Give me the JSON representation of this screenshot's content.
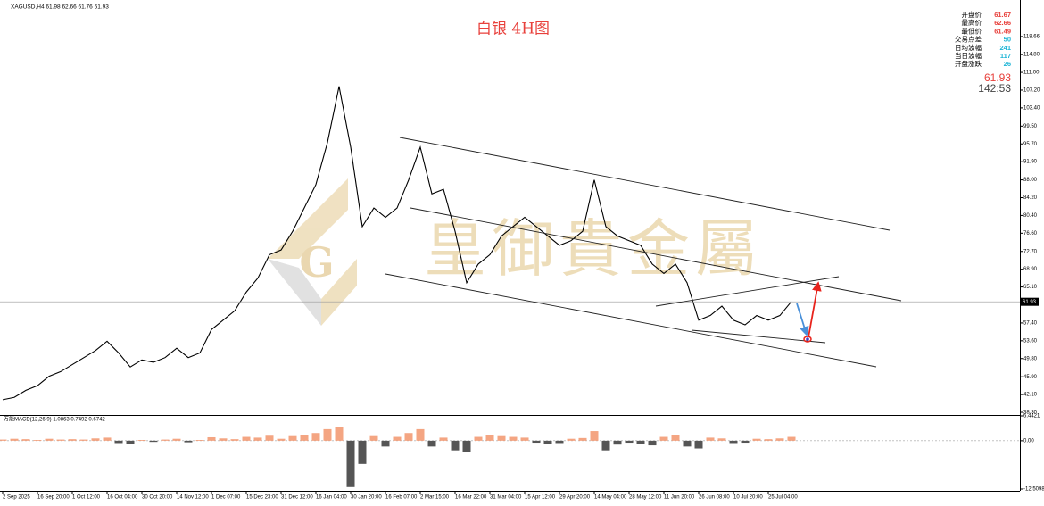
{
  "header": {
    "symbol": "XAGUSD,H4  61.98 62.66 61.76 61.93"
  },
  "watermark": {
    "logo": "G",
    "text": "皇御貴金屬"
  },
  "info_panel": {
    "rows": [
      {
        "label": "开盘价",
        "value": "61.67",
        "color": "#e8413c"
      },
      {
        "label": "最高价",
        "value": "62.66",
        "color": "#e8413c"
      },
      {
        "label": "最低价",
        "value": "61.49",
        "color": "#e8413c"
      },
      {
        "label": "交易点差",
        "value": "50",
        "color": "#1fb5d6"
      },
      {
        "label": "日均波幅",
        "value": "241",
        "color": "#1fb5d6"
      },
      {
        "label": "当日波幅",
        "value": "117",
        "color": "#1fb5d6"
      },
      {
        "label": "开盘涨跌",
        "value": "26",
        "color": "#1fb5d6"
      }
    ],
    "price": "61.93",
    "countdown": "142:53"
  },
  "chart_data": [
    {
      "type": "line",
      "title": "白银 4H图",
      "color": "#000000",
      "current_price": 61.93,
      "categories": [
        "2 Sep 2025",
        null,
        null,
        "16 Sep 20:00",
        null,
        null,
        "1 Oct 12:00",
        null,
        null,
        "16 Oct 04:00",
        null,
        null,
        "30 Oct 20:00",
        null,
        null,
        "14 Nov 12:00",
        null,
        null,
        "1 Dec 07:00",
        null,
        null,
        "15 Dec 23:00",
        null,
        null,
        "31 Dec 12:00",
        null,
        null,
        "16 Jan 04:00",
        null,
        null,
        "30 Jan 20:00",
        null,
        null,
        "16 Feb 07:00",
        null,
        null,
        "2 Mar 15:00",
        null,
        null,
        "16 Mar 22:00",
        null,
        null,
        "31 Mar 04:00",
        null,
        null,
        "15 Apr 12:00",
        null,
        null,
        "29 Apr 20:00",
        null,
        null,
        "14 May 04:00",
        null,
        null,
        "28 May 12:00",
        null,
        null,
        "11 Jun 20:00",
        null,
        null,
        "26 Jun 08:00",
        null,
        null,
        "10 Jul 20:00",
        null,
        null,
        "25 Jul 04:00",
        null,
        null
      ],
      "values": [
        41,
        41.5,
        43,
        44,
        46,
        47,
        48.5,
        50,
        51.5,
        53.5,
        51,
        48,
        49.5,
        49,
        50,
        52,
        50,
        51,
        56,
        58,
        60,
        64,
        67,
        72,
        73,
        77,
        82,
        87,
        96,
        108,
        95,
        78,
        82,
        80,
        82,
        88,
        95,
        85,
        86,
        77,
        66,
        70,
        72,
        76,
        78,
        80,
        78,
        76,
        74,
        75,
        77,
        88,
        78,
        76,
        75,
        74,
        70,
        68,
        70,
        66,
        58,
        59,
        61,
        58,
        57,
        59,
        58,
        59,
        62
      ],
      "ylim": [
        37.73,
        126.47
      ],
      "yticks": [
        {
          "value": 38.3,
          "label": "38.30"
        },
        {
          "value": 42.1,
          "label": "42.10"
        },
        {
          "value": 45.9,
          "label": "45.90"
        },
        {
          "value": 49.8,
          "label": "49.80"
        },
        {
          "value": 53.6,
          "label": "53.60"
        },
        {
          "value": 57.4,
          "label": "57.40"
        },
        {
          "value": 65.1,
          "label": "65.10"
        },
        {
          "value": 68.9,
          "label": "68.90"
        },
        {
          "value": 72.7,
          "label": "72.70"
        },
        {
          "value": 76.6,
          "label": "76.60"
        },
        {
          "value": 80.4,
          "label": "80.40"
        },
        {
          "value": 84.2,
          "label": "84.20"
        },
        {
          "value": 88,
          "label": "88.00"
        },
        {
          "value": 91.9,
          "label": "91.90"
        },
        {
          "value": 95.7,
          "label": "95.70"
        },
        {
          "value": 99.5,
          "label": "99.50"
        },
        {
          "value": 103.4,
          "label": "103.40"
        },
        {
          "value": 107.2,
          "label": "107.20"
        },
        {
          "value": 111,
          "label": "111.00"
        },
        {
          "value": 114.8,
          "label": "114.80"
        },
        118.66
      ]
    },
    {
      "type": "bar",
      "title": "万能MACD(12,26,9) 1.0863 0.7492 0.6742",
      "color_positive": "#f4a582",
      "color_negative": "#555555",
      "values": [
        0.3,
        0.5,
        0.4,
        0.2,
        0.5,
        0.3,
        0.4,
        0.3,
        0.6,
        0.8,
        -0.6,
        -0.9,
        0.2,
        -0.3,
        0.3,
        0.5,
        -0.4,
        0.2,
        0.9,
        0.6,
        0.4,
        1.0,
        0.8,
        1.3,
        0.5,
        1.2,
        1.5,
        2.0,
        3.0,
        3.5,
        -12.0,
        -6.0,
        1.2,
        -1.5,
        1.0,
        2.0,
        3.0,
        -1.5,
        0.8,
        -2.5,
        -3.0,
        1.0,
        1.5,
        1.2,
        1.0,
        0.8,
        -0.5,
        -0.8,
        -0.6,
        0.5,
        0.7,
        2.5,
        -2.5,
        -1.0,
        -0.5,
        -0.8,
        -1.2,
        1.0,
        1.5,
        -1.5,
        -2.0,
        0.8,
        0.6,
        -0.6,
        -0.5,
        0.5,
        0.4,
        0.6,
        1.0
      ],
      "ylim": [
        -12.5098,
        6.4421
      ],
      "yticks": [
        -12.5098,
        {
          "value": 0,
          "label": "0.00"
        },
        6.4421
      ]
    }
  ]
}
